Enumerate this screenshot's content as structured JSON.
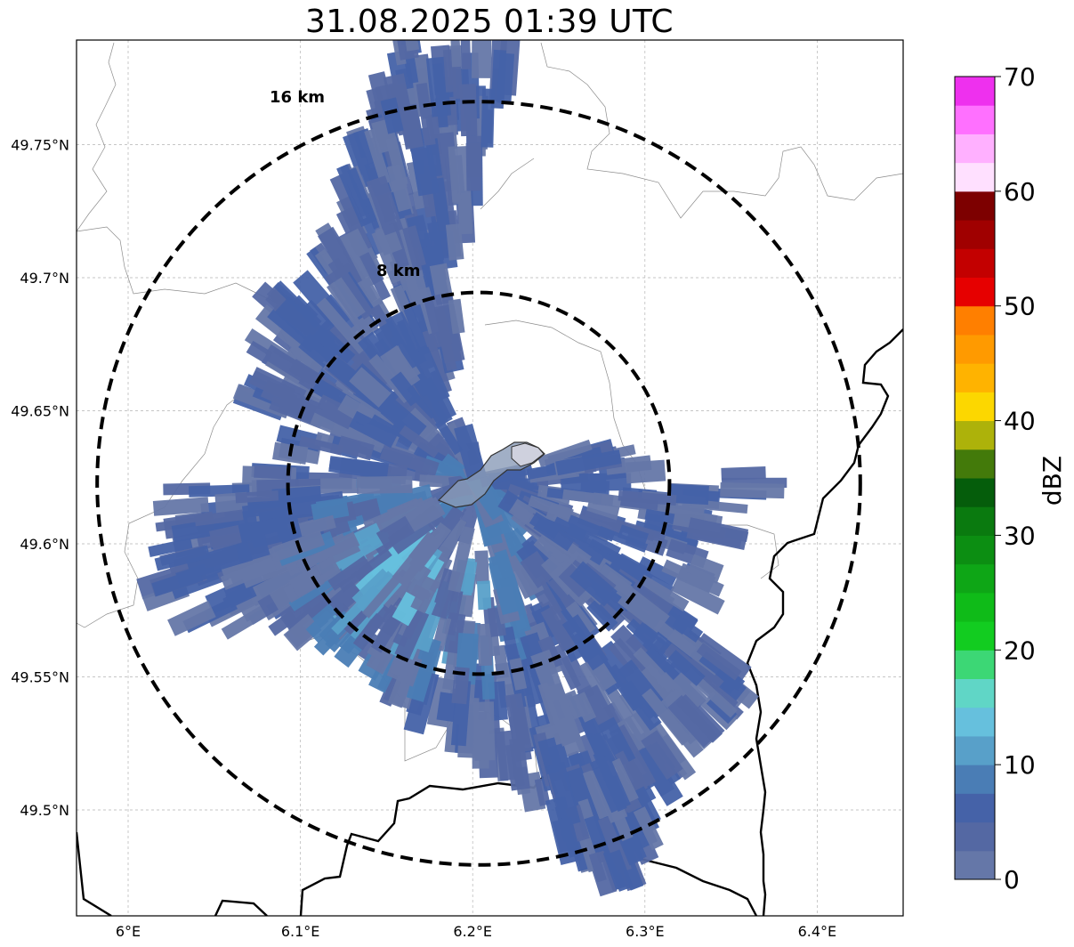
{
  "title": "31.08.2025 01:39 UTC",
  "map": {
    "lon_ticks": [
      {
        "value": 6.0,
        "label": "6°E"
      },
      {
        "value": 6.1,
        "label": "6.1°E"
      },
      {
        "value": 6.2,
        "label": "6.2°E"
      },
      {
        "value": 6.3,
        "label": "6.3°E"
      },
      {
        "value": 6.4,
        "label": "6.4°E"
      }
    ],
    "lat_ticks": [
      {
        "value": 49.75,
        "label": "49.75°N"
      },
      {
        "value": 49.7,
        "label": "49.7°N"
      },
      {
        "value": 49.65,
        "label": "49.65°N"
      },
      {
        "value": 49.6,
        "label": "49.6°N"
      },
      {
        "value": 49.55,
        "label": "49.55°N"
      },
      {
        "value": 49.5,
        "label": "49.5°N"
      }
    ],
    "range_rings": [
      {
        "label": "8 km",
        "radius_km": 8
      },
      {
        "label": "16 km",
        "radius_km": 16
      }
    ],
    "radar_center": {
      "lon": 6.202,
      "lat": 49.622
    }
  },
  "colorbar": {
    "label": "dBZ",
    "tick_labels": [
      "0",
      "10",
      "20",
      "30",
      "40",
      "50",
      "60",
      "70"
    ],
    "colors": [
      "#6577a8",
      "#5468a3",
      "#4562a8",
      "#4a7db5",
      "#58a0c9",
      "#66c0dd",
      "#60d6c6",
      "#3cd775",
      "#12cc20",
      "#0fbb18",
      "#0ea616",
      "#0c8e12",
      "#0a7a0f",
      "#055d0b",
      "#437a0a",
      "#adb20a",
      "#fcd700",
      "#ffb300",
      "#ff9a00",
      "#ff7f00",
      "#e60000",
      "#c30000",
      "#a00000",
      "#7d0000",
      "#ffe0ff",
      "#ffb0ff",
      "#ff70ff",
      "#ee30ee"
    ]
  }
}
